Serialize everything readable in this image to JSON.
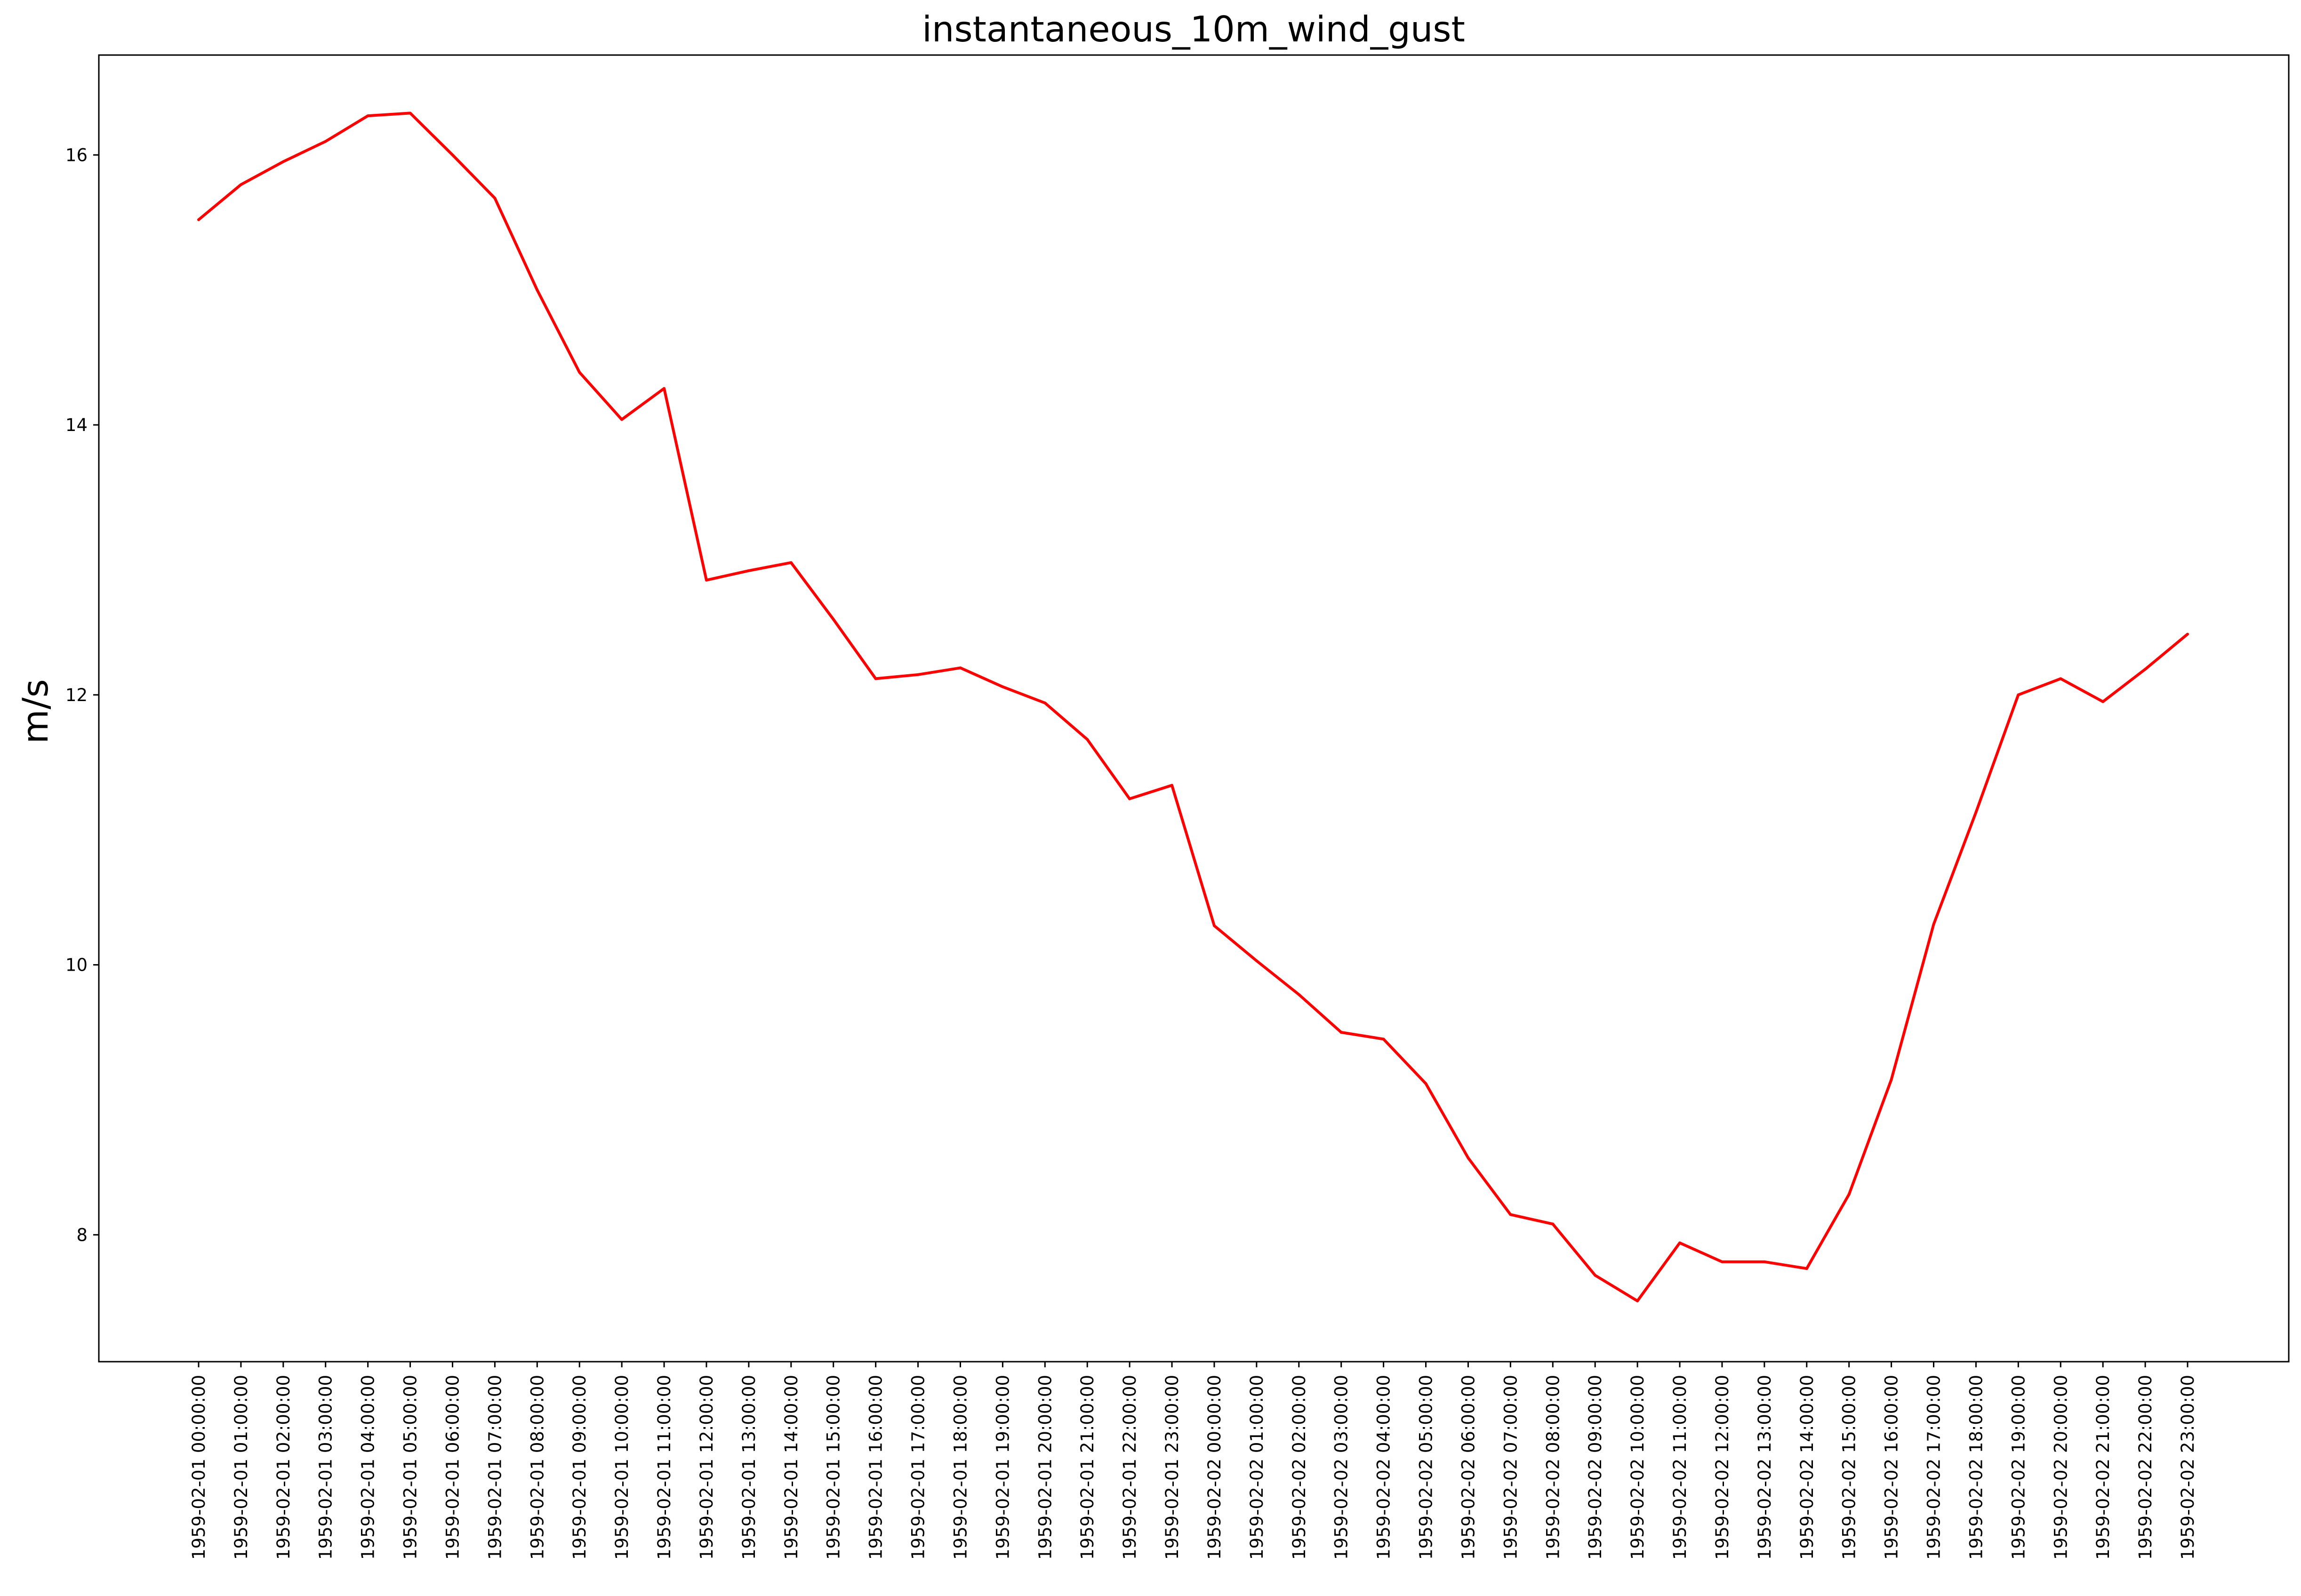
{
  "chart_data": {
    "type": "line",
    "title": "instantaneous_10m_wind_gust",
    "xlabel": "",
    "ylabel": "m/s",
    "ylim": [
      7.06,
      16.74
    ],
    "yticks": [
      8,
      10,
      12,
      14,
      16
    ],
    "grid": false,
    "legend": "none",
    "series_color": "#ff0000",
    "x": [
      "1959-02-01 00:00:00",
      "1959-02-01 01:00:00",
      "1959-02-01 02:00:00",
      "1959-02-01 03:00:00",
      "1959-02-01 04:00:00",
      "1959-02-01 05:00:00",
      "1959-02-01 06:00:00",
      "1959-02-01 07:00:00",
      "1959-02-01 08:00:00",
      "1959-02-01 09:00:00",
      "1959-02-01 10:00:00",
      "1959-02-01 11:00:00",
      "1959-02-01 12:00:00",
      "1959-02-01 13:00:00",
      "1959-02-01 14:00:00",
      "1959-02-01 15:00:00",
      "1959-02-01 16:00:00",
      "1959-02-01 17:00:00",
      "1959-02-01 18:00:00",
      "1959-02-01 19:00:00",
      "1959-02-01 20:00:00",
      "1959-02-01 21:00:00",
      "1959-02-01 22:00:00",
      "1959-02-01 23:00:00",
      "1959-02-02 00:00:00",
      "1959-02-02 01:00:00",
      "1959-02-02 02:00:00",
      "1959-02-02 03:00:00",
      "1959-02-02 04:00:00",
      "1959-02-02 05:00:00",
      "1959-02-02 06:00:00",
      "1959-02-02 07:00:00",
      "1959-02-02 08:00:00",
      "1959-02-02 09:00:00",
      "1959-02-02 10:00:00",
      "1959-02-02 11:00:00",
      "1959-02-02 12:00:00",
      "1959-02-02 13:00:00",
      "1959-02-02 14:00:00",
      "1959-02-02 15:00:00",
      "1959-02-02 16:00:00",
      "1959-02-02 17:00:00",
      "1959-02-02 18:00:00",
      "1959-02-02 19:00:00",
      "1959-02-02 20:00:00",
      "1959-02-02 21:00:00",
      "1959-02-02 22:00:00",
      "1959-02-02 23:00:00"
    ],
    "series": [
      {
        "values": [
          15.52,
          15.78,
          15.95,
          16.1,
          16.29,
          16.31,
          16.0,
          15.68,
          15.0,
          14.39,
          14.04,
          14.27,
          12.85,
          12.92,
          12.98,
          12.56,
          12.12,
          12.15,
          12.2,
          12.06,
          11.94,
          11.67,
          11.23,
          11.33,
          10.29,
          10.03,
          9.78,
          9.5,
          9.45,
          9.12,
          8.57,
          8.15,
          8.08,
          7.7,
          7.51,
          7.94,
          7.8,
          7.8,
          7.75,
          8.3,
          9.15,
          10.3,
          11.13,
          12.0,
          12.12,
          11.95,
          12.19,
          12.45
        ]
      }
    ]
  }
}
